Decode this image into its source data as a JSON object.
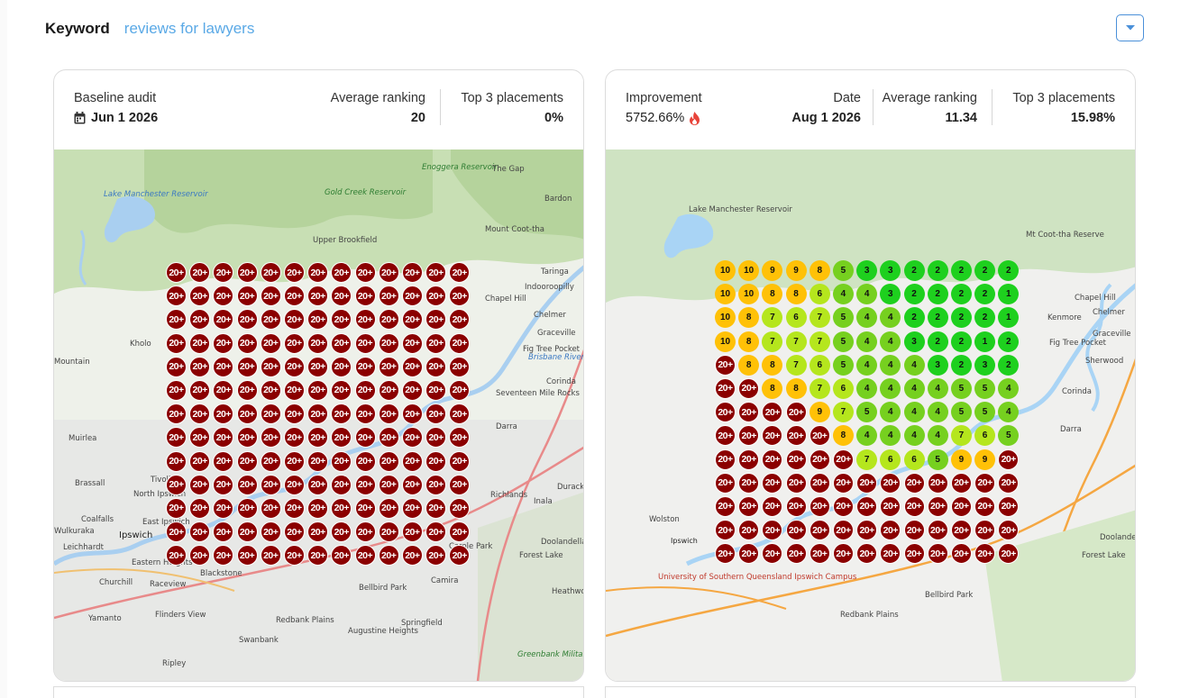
{
  "keyword": {
    "label": "Keyword",
    "value": "reviews for lawyers"
  },
  "colors": {
    "red": "#8b0000",
    "orange": "#ffc107",
    "yellow": "#b5e61d",
    "green": "#76d01f",
    "bright_green": "#1ed01e"
  },
  "baseline": {
    "title": "Baseline audit",
    "date_icon": "calendar-icon",
    "date": "Jun 1 2026",
    "avg_label": "Average ranking",
    "avg_value": "20",
    "top3_label": "Top 3 placements",
    "top3_value": "0%",
    "grid": [
      [
        "20+",
        "20+",
        "20+",
        "20+",
        "20+",
        "20+",
        "20+",
        "20+",
        "20+",
        "20+",
        "20+",
        "20+",
        "20+"
      ],
      [
        "20+",
        "20+",
        "20+",
        "20+",
        "20+",
        "20+",
        "20+",
        "20+",
        "20+",
        "20+",
        "20+",
        "20+",
        "20+"
      ],
      [
        "20+",
        "20+",
        "20+",
        "20+",
        "20+",
        "20+",
        "20+",
        "20+",
        "20+",
        "20+",
        "20+",
        "20+",
        "20+"
      ],
      [
        "20+",
        "20+",
        "20+",
        "20+",
        "20+",
        "20+",
        "20+",
        "20+",
        "20+",
        "20+",
        "20+",
        "20+",
        "20+"
      ],
      [
        "20+",
        "20+",
        "20+",
        "20+",
        "20+",
        "20+",
        "20+",
        "20+",
        "20+",
        "20+",
        "20+",
        "20+",
        "20+"
      ],
      [
        "20+",
        "20+",
        "20+",
        "20+",
        "20+",
        "20+",
        "20+",
        "20+",
        "20+",
        "20+",
        "20+",
        "20+",
        "20+"
      ],
      [
        "20+",
        "20+",
        "20+",
        "20+",
        "20+",
        "20+",
        "20+",
        "20+",
        "20+",
        "20+",
        "20+",
        "20+",
        "20+"
      ],
      [
        "20+",
        "20+",
        "20+",
        "20+",
        "20+",
        "20+",
        "20+",
        "20+",
        "20+",
        "20+",
        "20+",
        "20+",
        "20+"
      ],
      [
        "20+",
        "20+",
        "20+",
        "20+",
        "20+",
        "20+",
        "20+",
        "20+",
        "20+",
        "20+",
        "20+",
        "20+",
        "20+"
      ],
      [
        "20+",
        "20+",
        "20+",
        "20+",
        "20+",
        "20+",
        "20+",
        "20+",
        "20+",
        "20+",
        "20+",
        "20+",
        "20+"
      ],
      [
        "20+",
        "20+",
        "20+",
        "20+",
        "20+",
        "20+",
        "20+",
        "20+",
        "20+",
        "20+",
        "20+",
        "20+",
        "20+"
      ],
      [
        "20+",
        "20+",
        "20+",
        "20+",
        "20+",
        "20+",
        "20+",
        "20+",
        "20+",
        "20+",
        "20+",
        "20+",
        "20+"
      ],
      [
        "20+",
        "20+",
        "20+",
        "20+",
        "20+",
        "20+",
        "20+",
        "20+",
        "20+",
        "20+",
        "20+",
        "20+",
        "20+"
      ]
    ],
    "map_labels": [
      "Lake Manchester Reservoir",
      "Enoggera Reservoir",
      "Gold Creek Reservoir",
      "The Gap",
      "Bardon",
      "Mount Coot-tha",
      "Upper Brookfield",
      "Taringa",
      "Indooroopilly",
      "Chapel Hill",
      "Chelmer",
      "Graceville",
      "Fig Tree Pocket",
      "Brisbane River",
      "Kholo",
      "Mountain",
      "Seventeen Mile Rocks",
      "Corinda",
      "Darra",
      "Muirlea",
      "Richlands",
      "Inala",
      "Durack",
      "Brassall",
      "Tivoli",
      "North Ipswich",
      "Coalfalls",
      "Wulkuraka",
      "East Ipswich",
      "Ipswich",
      "Leichhardt",
      "Eastern Heights",
      "Doolandella",
      "Forest Lake",
      "Carole Park",
      "Camira",
      "Churchill",
      "Raceview",
      "Blackstone",
      "Bellbird Park",
      "Heathwood",
      "Yamanto",
      "Flinders View",
      "Redbank Plains",
      "Swanbank",
      "Augustine Heights",
      "Springfield",
      "Greenbank Military Training Area",
      "Ripley"
    ]
  },
  "current": {
    "improvement_label": "Improvement",
    "improvement_value": "5752.66%",
    "improvement_icon": "flame-icon",
    "date_label": "Date",
    "date_value": "Aug 1 2026",
    "avg_label": "Average ranking",
    "avg_value": "11.34",
    "top3_label": "Top 3 placements",
    "top3_value": "15.98%",
    "grid": [
      [
        "10",
        "10",
        "9",
        "9",
        "8",
        "5",
        "3",
        "3",
        "2",
        "2",
        "2",
        "2",
        "2"
      ],
      [
        "10",
        "10",
        "8",
        "8",
        "6",
        "4",
        "4",
        "3",
        "2",
        "2",
        "2",
        "2",
        "1"
      ],
      [
        "10",
        "8",
        "7",
        "6",
        "7",
        "5",
        "4",
        "4",
        "2",
        "2",
        "2",
        "2",
        "1"
      ],
      [
        "10",
        "8",
        "7",
        "7",
        "7",
        "5",
        "4",
        "4",
        "3",
        "2",
        "2",
        "1",
        "2"
      ],
      [
        "20+",
        "8",
        "8",
        "7",
        "6",
        "5",
        "4",
        "4",
        "4",
        "3",
        "2",
        "3",
        "2"
      ],
      [
        "20+",
        "20+",
        "8",
        "8",
        "7",
        "6",
        "4",
        "4",
        "4",
        "4",
        "5",
        "5",
        "4"
      ],
      [
        "20+",
        "20+",
        "20+",
        "20+",
        "9",
        "7",
        "5",
        "4",
        "4",
        "4",
        "5",
        "5",
        "4"
      ],
      [
        "20+",
        "20+",
        "20+",
        "20+",
        "20+",
        "8",
        "4",
        "4",
        "4",
        "4",
        "7",
        "6",
        "5"
      ],
      [
        "20+",
        "20+",
        "20+",
        "20+",
        "20+",
        "20+",
        "7",
        "6",
        "6",
        "5",
        "9",
        "9",
        "20+"
      ],
      [
        "20+",
        "20+",
        "20+",
        "20+",
        "20+",
        "20+",
        "20+",
        "20+",
        "20+",
        "20+",
        "20+",
        "20+",
        "20+"
      ],
      [
        "20+",
        "20+",
        "20+",
        "20+",
        "20+",
        "20+",
        "20+",
        "20+",
        "20+",
        "20+",
        "20+",
        "20+",
        "20+"
      ],
      [
        "20+",
        "20+",
        "20+",
        "20+",
        "20+",
        "20+",
        "20+",
        "20+",
        "20+",
        "20+",
        "20+",
        "20+",
        "20+"
      ],
      [
        "20+",
        "20+",
        "20+",
        "20+",
        "20+",
        "20+",
        "20+",
        "20+",
        "20+",
        "20+",
        "20+",
        "20+",
        "20+"
      ]
    ],
    "map_labels": [
      "Lake Manchester Reservoir",
      "Mt Coot-tha Reserve",
      "Ipswich",
      "University of Southern Queensland Ipswich Campus",
      "Chapel Hill",
      "Kenmore",
      "Chelmer",
      "Graceville",
      "Fig Tree Pocket",
      "Sherwood",
      "Corinda",
      "Darra",
      "Wolston",
      "Forest Lake",
      "Doolandella",
      "Redbank Plains",
      "Bellbird Park"
    ]
  }
}
